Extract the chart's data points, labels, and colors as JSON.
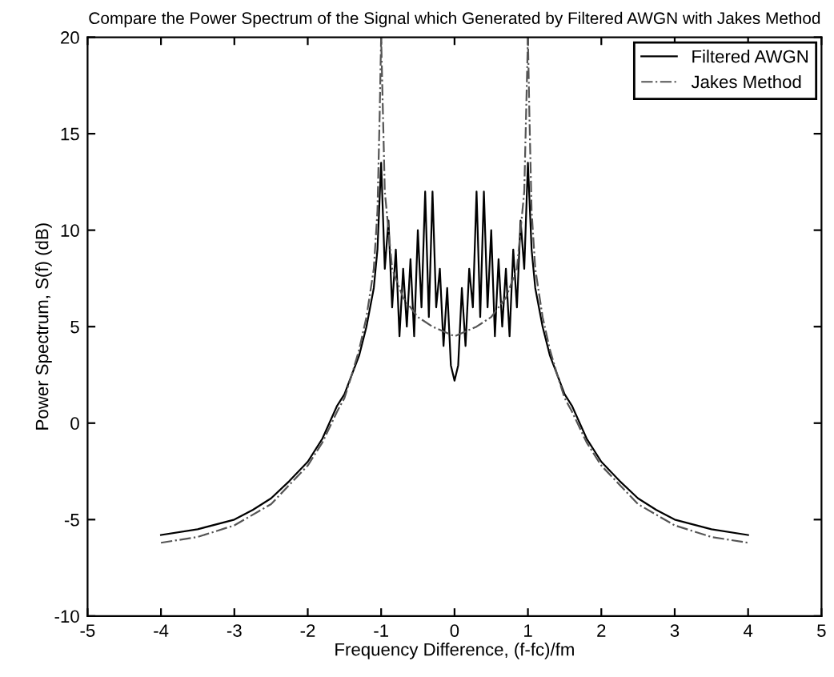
{
  "chart_data": {
    "type": "line",
    "title": "Compare the Power Spectrum of the Signal which Generated by Filtered AWGN with Jakes Method",
    "xlabel": "Frequency Difference, (f-fc)/fm",
    "ylabel": "Power Spectrum, S(f) (dB)",
    "xlim": [
      -5,
      5
    ],
    "xticks": [
      -5,
      -4,
      -3,
      -2,
      -1,
      0,
      1,
      2,
      3,
      4,
      5
    ],
    "ylim": [
      -10,
      20
    ],
    "yticks": [
      -10,
      -5,
      0,
      5,
      10,
      15,
      20
    ],
    "grid": false,
    "legend": "top right",
    "marker": "none",
    "series": [
      {
        "name": "Filtered AWGN",
        "color": "#000000",
        "line_style": "solid",
        "x": [
          -4.0,
          -3.5,
          -3.0,
          -2.75,
          -2.5,
          -2.25,
          -2.0,
          -1.8,
          -1.6,
          -1.5,
          -1.4,
          -1.3,
          -1.2,
          -1.1,
          -1.05,
          -1.0,
          -0.95,
          -0.9,
          -0.85,
          -0.8,
          -0.75,
          -0.7,
          -0.65,
          -0.6,
          -0.55,
          -0.5,
          -0.45,
          -0.4,
          -0.35,
          -0.3,
          -0.25,
          -0.2,
          -0.15,
          -0.1,
          -0.05,
          0.0,
          0.05,
          0.1,
          0.15,
          0.2,
          0.25,
          0.3,
          0.35,
          0.4,
          0.45,
          0.5,
          0.55,
          0.6,
          0.65,
          0.7,
          0.75,
          0.8,
          0.85,
          0.9,
          0.95,
          1.0,
          1.05,
          1.1,
          1.2,
          1.3,
          1.4,
          1.5,
          1.6,
          1.8,
          2.0,
          2.25,
          2.5,
          2.75,
          3.0,
          3.5,
          4.0
        ],
        "values": [
          -5.8,
          -5.5,
          -5.0,
          -4.5,
          -3.9,
          -3.0,
          -2.0,
          -0.8,
          0.9,
          1.5,
          2.5,
          3.5,
          5.0,
          7.0,
          9.0,
          13.5,
          8.0,
          10.5,
          6.0,
          9.0,
          4.5,
          8.0,
          5.0,
          8.5,
          4.5,
          10.0,
          6.0,
          12.0,
          5.5,
          12.0,
          6.0,
          8.0,
          4.0,
          7.0,
          3.0,
          2.2,
          3.0,
          7.0,
          4.0,
          8.0,
          6.0,
          12.0,
          5.5,
          12.0,
          6.0,
          10.0,
          4.5,
          8.5,
          5.0,
          8.0,
          4.5,
          9.0,
          6.0,
          10.5,
          8.0,
          13.5,
          9.0,
          7.0,
          5.0,
          3.5,
          2.5,
          1.5,
          0.9,
          -0.8,
          -2.0,
          -3.0,
          -3.9,
          -4.5,
          -5.0,
          -5.5,
          -5.8
        ]
      },
      {
        "name": "Jakes Method",
        "color": "#555555",
        "line_style": "dashdot",
        "x": [
          -4.0,
          -3.5,
          -3.0,
          -2.5,
          -2.0,
          -1.8,
          -1.6,
          -1.5,
          -1.4,
          -1.3,
          -1.2,
          -1.1,
          -1.05,
          -1.02,
          -1.0,
          -0.95,
          -0.85,
          -0.7,
          -0.5,
          -0.3,
          0.0,
          0.3,
          0.5,
          0.7,
          0.85,
          0.95,
          1.0,
          1.02,
          1.05,
          1.1,
          1.2,
          1.3,
          1.4,
          1.5,
          1.6,
          1.8,
          2.0,
          2.5,
          3.0,
          3.5,
          4.0
        ],
        "values": [
          -6.2,
          -5.9,
          -5.3,
          -4.2,
          -2.2,
          -1.0,
          0.6,
          1.3,
          2.5,
          3.8,
          5.5,
          8.0,
          11.0,
          16.0,
          20.0,
          12.0,
          8.0,
          6.5,
          5.5,
          5.0,
          4.5,
          5.0,
          5.5,
          6.5,
          8.0,
          12.0,
          20.0,
          16.0,
          11.0,
          8.0,
          5.5,
          3.8,
          2.5,
          1.3,
          0.6,
          -1.0,
          -2.2,
          -4.2,
          -5.3,
          -5.9,
          -6.2
        ]
      }
    ]
  }
}
